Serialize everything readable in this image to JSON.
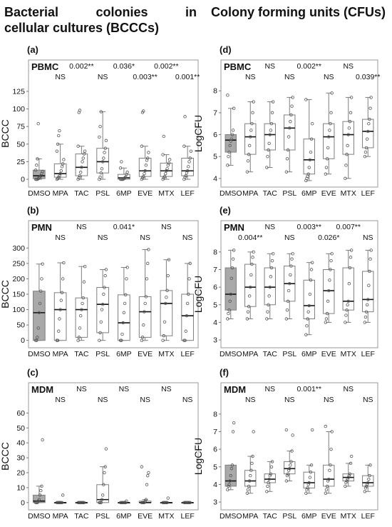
{
  "headers": {
    "left_line1": [
      "Bacterial",
      "colonies",
      "in"
    ],
    "left_line2": "cellular cultures (BCCCs)",
    "right": "Colony forming units (CFUs)"
  },
  "colors": {
    "control_fill": "#a9a9a9",
    "box_fill": "#ffffff",
    "box_edge": "#7f7f7f",
    "point_edge": "#555555",
    "median": "#111111"
  },
  "chart_data": [
    {
      "panel": "(a)",
      "title": "PBMC",
      "type": "box",
      "ylabel": "BCCC",
      "ylim": [
        -5,
        135
      ],
      "yticks": [
        0,
        25,
        50,
        75,
        100,
        125
      ],
      "categories": [
        "DMSO",
        "MPA",
        "TAC",
        "PSL",
        "6MP",
        "EVE",
        "MTX",
        "LEF"
      ],
      "significance_row1": [
        "",
        "",
        "0.002**",
        "",
        "0.036*",
        "",
        "0.002**",
        ""
      ],
      "significance_row2": [
        "",
        "NS",
        "",
        "NS",
        "",
        "0.003**",
        "",
        "0.001**"
      ],
      "boxes": [
        {
          "whislo": 0,
          "q1": 1,
          "med": 5,
          "q3": 13,
          "whishi": 29,
          "points": [
            0,
            0,
            0,
            1,
            2,
            3,
            5,
            8,
            11,
            13,
            20,
            29,
            79
          ]
        },
        {
          "whislo": 0,
          "q1": 3,
          "med": 8,
          "q3": 22,
          "whishi": 50,
          "points": [
            0,
            1,
            3,
            5,
            8,
            12,
            18,
            22,
            28,
            40,
            50,
            62,
            69
          ]
        },
        {
          "whislo": 0,
          "q1": 5,
          "med": 17,
          "q3": 36,
          "whishi": 47,
          "points": [
            0,
            2,
            5,
            10,
            17,
            25,
            30,
            36,
            40,
            47,
            95,
            98
          ]
        },
        {
          "whislo": 0,
          "q1": 9,
          "med": 25,
          "q3": 44,
          "whishi": 96,
          "points": [
            0,
            3,
            9,
            15,
            25,
            30,
            38,
            44,
            55,
            60,
            75,
            96
          ]
        },
        {
          "whislo": 0,
          "q1": 0,
          "med": 2,
          "q3": 7,
          "whishi": 16,
          "points": [
            0,
            0,
            0,
            0,
            1,
            2,
            3,
            7,
            10,
            16,
            25
          ]
        },
        {
          "whislo": 0,
          "q1": 4,
          "med": 12,
          "q3": 30,
          "whishi": 47,
          "points": [
            0,
            2,
            4,
            8,
            12,
            20,
            27,
            30,
            38,
            47,
            95,
            97
          ]
        },
        {
          "whislo": 0,
          "q1": 4,
          "med": 12,
          "q3": 23,
          "whishi": 35,
          "points": [
            0,
            2,
            4,
            8,
            12,
            15,
            20,
            23,
            28,
            35,
            61
          ]
        },
        {
          "whislo": 0,
          "q1": 5,
          "med": 12,
          "q3": 30,
          "whishi": 47,
          "points": [
            0,
            3,
            5,
            9,
            12,
            18,
            25,
            30,
            40,
            47,
            89
          ]
        }
      ]
    },
    {
      "panel": "(d)",
      "title": "PBMC",
      "type": "box",
      "ylabel": "LogCFU",
      "ylim": [
        3.8,
        8.3
      ],
      "yticks": [
        4.0,
        5.0,
        6.0,
        7.0,
        8.0
      ],
      "categories": [
        "DMSO",
        "MPA",
        "TAC",
        "PSL",
        "6MP",
        "EVE",
        "MTX",
        "LEF"
      ],
      "significance_row1": [
        "",
        "",
        "NS",
        "",
        "0.002**",
        "",
        "NS",
        ""
      ],
      "significance_row2": [
        "",
        "NS",
        "",
        "NS",
        "",
        "NS",
        "",
        "0.039**"
      ],
      "boxes": [
        {
          "whislo": 4.6,
          "q1": 5.2,
          "med": 5.75,
          "q3": 6.0,
          "whishi": 7.2,
          "points": [
            4.6,
            5.0,
            5.2,
            5.5,
            5.7,
            5.8,
            6.0,
            6.2,
            7.2,
            7.8
          ]
        },
        {
          "whislo": 4.3,
          "q1": 5.1,
          "med": 5.9,
          "q3": 6.5,
          "whishi": 7.5,
          "points": [
            4.3,
            4.8,
            5.1,
            5.5,
            5.9,
            6.2,
            6.5,
            7.0,
            7.5
          ]
        },
        {
          "whislo": 4.5,
          "q1": 5.3,
          "med": 6.0,
          "q3": 6.5,
          "whishi": 7.5,
          "points": [
            4.5,
            5.0,
            5.3,
            5.6,
            6.0,
            6.2,
            6.5,
            7.0,
            7.5
          ]
        },
        {
          "whislo": 4.3,
          "q1": 5.3,
          "med": 6.3,
          "q3": 6.9,
          "whishi": 7.7,
          "points": [
            4.3,
            4.9,
            5.3,
            5.9,
            6.3,
            6.6,
            6.9,
            7.3,
            7.7
          ]
        },
        {
          "whislo": 3.9,
          "q1": 4.2,
          "med": 4.85,
          "q3": 5.8,
          "whishi": 7.6,
          "points": [
            3.9,
            4.0,
            4.1,
            4.2,
            4.5,
            4.85,
            5.2,
            5.8,
            6.5,
            7.6
          ]
        },
        {
          "whislo": 4.2,
          "q1": 4.9,
          "med": 5.9,
          "q3": 6.5,
          "whishi": 7.9,
          "points": [
            4.2,
            4.5,
            4.9,
            5.4,
            5.9,
            6.2,
            6.5,
            7.0,
            7.9
          ]
        },
        {
          "whislo": 4.0,
          "q1": 5.1,
          "med": 6.0,
          "q3": 6.6,
          "whishi": 7.7,
          "points": [
            4.0,
            4.6,
            5.1,
            5.5,
            6.0,
            6.3,
            6.6,
            7.0,
            7.7
          ]
        },
        {
          "whislo": 5.0,
          "q1": 5.4,
          "med": 6.15,
          "q3": 6.7,
          "whishi": 7.7,
          "points": [
            5.0,
            5.2,
            5.4,
            5.8,
            6.15,
            6.5,
            6.7,
            7.2,
            7.7
          ]
        }
      ]
    },
    {
      "panel": "(b)",
      "title": "PMN",
      "type": "box",
      "ylabel": "BCCC",
      "ylim": [
        -10,
        310
      ],
      "yticks": [
        0,
        50,
        100,
        150,
        200,
        250,
        300
      ],
      "categories": [
        "DMSO",
        "MPA",
        "TAC",
        "PSL",
        "6MP",
        "EVE",
        "MTX",
        "LEF"
      ],
      "significance_row1": [
        "",
        "",
        "NS",
        "",
        "0.041*",
        "",
        "NS",
        ""
      ],
      "significance_row2": [
        "",
        "NS",
        "",
        "NS",
        "",
        "NS",
        "",
        "NS"
      ],
      "boxes": [
        {
          "whislo": 0,
          "q1": 0,
          "med": 90,
          "q3": 160,
          "whishi": 248,
          "points": [
            0,
            0,
            10,
            40,
            90,
            120,
            160,
            200,
            248
          ]
        },
        {
          "whislo": 0,
          "q1": 0,
          "med": 100,
          "q3": 155,
          "whishi": 252,
          "points": [
            0,
            0,
            30,
            70,
            100,
            130,
            155,
            200,
            252
          ]
        },
        {
          "whislo": 0,
          "q1": 10,
          "med": 100,
          "q3": 138,
          "whishi": 240,
          "points": [
            0,
            10,
            40,
            80,
            100,
            120,
            138,
            190,
            240
          ]
        },
        {
          "whislo": 0,
          "q1": 25,
          "med": 117,
          "q3": 172,
          "whishi": 230,
          "points": [
            0,
            25,
            60,
            100,
            117,
            150,
            172,
            210,
            230
          ]
        },
        {
          "whislo": 0,
          "q1": 0,
          "med": 57,
          "q3": 148,
          "whishi": 237,
          "points": [
            0,
            0,
            20,
            57,
            90,
            120,
            148,
            200,
            237
          ]
        },
        {
          "whislo": 0,
          "q1": 10,
          "med": 93,
          "q3": 142,
          "whishi": 295,
          "points": [
            0,
            10,
            50,
            93,
            120,
            142,
            200,
            250,
            295
          ]
        },
        {
          "whislo": 0,
          "q1": 15,
          "med": 120,
          "q3": 162,
          "whishi": 262,
          "points": [
            0,
            15,
            60,
            120,
            140,
            162,
            210,
            262
          ]
        },
        {
          "whislo": 0,
          "q1": 0,
          "med": 80,
          "q3": 150,
          "whishi": 250,
          "points": [
            0,
            0,
            30,
            80,
            120,
            150,
            200,
            250
          ]
        }
      ]
    },
    {
      "panel": "(e)",
      "title": "PMN",
      "type": "box",
      "ylabel": "LogCFU",
      "ylim": [
        2.8,
        8.4
      ],
      "yticks": [
        3.0,
        4.0,
        5.0,
        6.0,
        7.0,
        8.0
      ],
      "categories": [
        "DMSO",
        "MPA",
        "TAC",
        "PSL",
        "6MP",
        "EVE",
        "MTX",
        "LEF"
      ],
      "significance_row1": [
        "",
        "",
        "NS",
        "",
        "0.003**",
        "",
        "0.007**",
        ""
      ],
      "significance_row2": [
        "",
        "0.004**",
        "",
        "NS",
        "",
        "0.026*",
        "",
        "NS"
      ],
      "boxes": [
        {
          "whislo": 4.2,
          "q1": 4.7,
          "med": 5.6,
          "q3": 7.1,
          "whishi": 8.1,
          "points": [
            4.2,
            4.5,
            4.7,
            5.2,
            5.6,
            6.5,
            7.1,
            7.6,
            8.1
          ]
        },
        {
          "whislo": 4.2,
          "q1": 4.9,
          "med": 6.0,
          "q3": 7.3,
          "whishi": 8.0,
          "points": [
            4.2,
            4.6,
            4.9,
            5.5,
            6.0,
            6.7,
            7.3,
            7.7,
            8.0
          ]
        },
        {
          "whislo": 4.2,
          "q1": 5.0,
          "med": 6.0,
          "q3": 7.1,
          "whishi": 7.9,
          "points": [
            4.2,
            4.6,
            5.0,
            5.5,
            6.0,
            6.6,
            7.1,
            7.5,
            7.9
          ]
        },
        {
          "whislo": 4.2,
          "q1": 5.2,
          "med": 6.2,
          "q3": 7.2,
          "whishi": 7.9,
          "points": [
            4.2,
            4.7,
            5.2,
            5.8,
            6.2,
            6.7,
            7.2,
            7.6,
            7.9
          ]
        },
        {
          "whislo": 3.3,
          "q1": 4.2,
          "med": 4.95,
          "q3": 6.4,
          "whishi": 7.4,
          "points": [
            3.3,
            3.8,
            4.2,
            4.6,
            4.95,
            5.6,
            6.4,
            7.0,
            7.4
          ]
        },
        {
          "whislo": 4.0,
          "q1": 4.5,
          "med": 5.8,
          "q3": 7.0,
          "whishi": 7.9,
          "points": [
            4.0,
            4.2,
            4.5,
            5.2,
            5.8,
            6.4,
            7.0,
            7.5,
            7.9
          ]
        },
        {
          "whislo": 4.0,
          "q1": 4.7,
          "med": 5.2,
          "q3": 7.1,
          "whishi": 8.1,
          "points": [
            4.0,
            4.4,
            4.7,
            5.0,
            5.2,
            6.2,
            7.1,
            7.7,
            8.1
          ]
        },
        {
          "whislo": 4.0,
          "q1": 4.6,
          "med": 5.3,
          "q3": 6.9,
          "whishi": 8.1,
          "points": [
            4.0,
            4.3,
            4.6,
            5.0,
            5.3,
            6.1,
            6.9,
            7.6,
            8.1
          ]
        }
      ]
    },
    {
      "panel": "(c)",
      "title": "MDM",
      "type": "box",
      "ylabel": "BCCC",
      "ylim": [
        -2,
        64
      ],
      "yticks": [
        0,
        10,
        20,
        30,
        40,
        50,
        60
      ],
      "categories": [
        "DMSO",
        "MPA",
        "TAC",
        "PSL",
        "6MP",
        "EVE",
        "MTX",
        "LEF"
      ],
      "significance_row1": [
        "",
        "",
        "NS",
        "",
        "NS",
        "",
        "NS",
        ""
      ],
      "significance_row2": [
        "",
        "NS",
        "",
        "NS",
        "",
        "NS",
        "",
        "NS"
      ],
      "boxes": [
        {
          "whislo": 0,
          "q1": 0,
          "med": 1,
          "q3": 5,
          "whishi": 11,
          "points": [
            0,
            0,
            0,
            1,
            2,
            5,
            8,
            11,
            42
          ]
        },
        {
          "whislo": 0,
          "q1": 0,
          "med": 0,
          "q3": 0,
          "whishi": 0,
          "points": [
            0,
            0,
            0,
            0,
            0,
            0,
            0,
            5
          ]
        },
        {
          "whislo": 0,
          "q1": 0,
          "med": 0,
          "q3": 0,
          "whishi": 0,
          "points": [
            0,
            0,
            0,
            0,
            0,
            0,
            0,
            0
          ]
        },
        {
          "whislo": 0,
          "q1": 0,
          "med": 2,
          "q3": 12,
          "whishi": 24,
          "points": [
            0,
            0,
            0,
            2,
            5,
            12,
            20,
            24,
            36
          ]
        },
        {
          "whislo": 0,
          "q1": 0,
          "med": 0,
          "q3": 0,
          "whishi": 0,
          "points": [
            0,
            0,
            0,
            0,
            0,
            0,
            0,
            1
          ]
        },
        {
          "whislo": 0,
          "q1": 0,
          "med": 0,
          "q3": 1,
          "whishi": 2,
          "points": [
            0,
            0,
            0,
            0,
            1,
            2,
            12,
            18,
            20,
            24
          ]
        },
        {
          "whislo": 0,
          "q1": 0,
          "med": 0,
          "q3": 0,
          "whishi": 0,
          "points": [
            0,
            0,
            0,
            0,
            0,
            0,
            3
          ]
        },
        {
          "whislo": 0,
          "q1": 0,
          "med": 0,
          "q3": 0,
          "whishi": 0,
          "points": [
            0,
            0,
            0,
            0,
            0,
            0,
            0,
            0
          ]
        }
      ]
    },
    {
      "panel": "(f)",
      "title": "MDM",
      "type": "box",
      "ylabel": "LogCFU",
      "ylim": [
        2.8,
        8.4
      ],
      "yticks": [
        3.0,
        4.0,
        5.0,
        6.0,
        7.0,
        8.0
      ],
      "categories": [
        "DMSO",
        "MPA",
        "TAC",
        "PSL",
        "6MP",
        "EVE",
        "MTX",
        "LEF"
      ],
      "significance_row1": [
        "",
        "",
        "NS",
        "",
        "0.001**",
        "",
        "NS",
        ""
      ],
      "significance_row2": [
        "",
        "NS",
        "",
        "NS",
        "",
        "NS",
        "",
        "NS"
      ],
      "boxes": [
        {
          "whislo": 3.7,
          "q1": 3.9,
          "med": 4.2,
          "q3": 5.1,
          "whishi": 5.1,
          "points": [
            3.7,
            3.9,
            4.0,
            4.2,
            4.5,
            4.9,
            5.1,
            7.0,
            7.5
          ]
        },
        {
          "whislo": 3.5,
          "q1": 3.9,
          "med": 4.2,
          "q3": 4.8,
          "whishi": 5.6,
          "points": [
            3.5,
            3.7,
            3.9,
            4.2,
            4.5,
            4.8,
            5.2,
            5.6,
            7.0
          ]
        },
        {
          "whislo": 3.6,
          "q1": 4.1,
          "med": 4.3,
          "q3": 4.6,
          "whishi": 5.3,
          "points": [
            3.6,
            3.9,
            4.1,
            4.3,
            4.5,
            4.6,
            5.0,
            5.3
          ]
        },
        {
          "whislo": 4.2,
          "q1": 4.6,
          "med": 4.9,
          "q3": 5.3,
          "whishi": 5.9,
          "points": [
            4.2,
            4.5,
            4.6,
            4.8,
            4.9,
            5.1,
            5.3,
            5.9,
            6.8,
            7.1
          ]
        },
        {
          "whislo": 3.5,
          "q1": 3.8,
          "med": 4.1,
          "q3": 4.7,
          "whishi": 5.1,
          "points": [
            3.5,
            3.7,
            3.8,
            4.0,
            4.1,
            4.4,
            4.7,
            5.1,
            7.1
          ]
        },
        {
          "whislo": 3.5,
          "q1": 3.9,
          "med": 4.3,
          "q3": 5.1,
          "whishi": 7.0,
          "points": [
            3.5,
            3.7,
            3.9,
            4.2,
            4.3,
            4.8,
            5.1,
            6.0,
            7.0,
            7.3
          ]
        },
        {
          "whislo": 3.9,
          "q1": 4.2,
          "med": 4.4,
          "q3": 4.6,
          "whishi": 5.2,
          "points": [
            3.9,
            4.1,
            4.2,
            4.3,
            4.4,
            4.5,
            4.6,
            5.2,
            5.6
          ]
        },
        {
          "whislo": 3.6,
          "q1": 3.9,
          "med": 4.1,
          "q3": 4.5,
          "whishi": 5.1,
          "points": [
            3.6,
            3.8,
            3.9,
            4.0,
            4.1,
            4.3,
            4.5,
            5.1
          ]
        }
      ]
    }
  ]
}
